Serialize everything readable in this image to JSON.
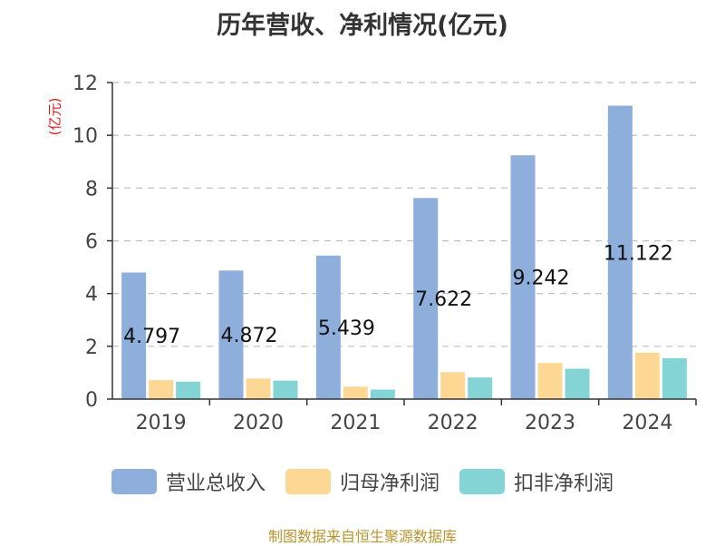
{
  "chart_data": {
    "type": "bar",
    "title": "历年营收、净利情况(亿元)",
    "ylabel": "(亿元)",
    "ylim": [
      0,
      12
    ],
    "yticks": [
      0,
      2,
      4,
      6,
      8,
      10,
      12
    ],
    "grid": true,
    "legend_position": "bottom",
    "categories": [
      "2019",
      "2020",
      "2021",
      "2022",
      "2023",
      "2024"
    ],
    "series": [
      {
        "name": "营业总收入",
        "color": "#8eaedb",
        "values": [
          4.797,
          4.872,
          5.439,
          7.622,
          9.242,
          11.122
        ],
        "labels": [
          "4.797",
          "4.872",
          "5.439",
          "7.622",
          "9.242",
          "11.122"
        ]
      },
      {
        "name": "归母净利润",
        "color": "#fdd894",
        "values": [
          0.72,
          0.78,
          0.47,
          1.02,
          1.37,
          1.76
        ]
      },
      {
        "name": "扣非净利润",
        "color": "#84d4d6",
        "values": [
          0.66,
          0.7,
          0.36,
          0.82,
          1.15,
          1.55
        ]
      }
    ]
  },
  "source": "制图数据来自恒生聚源数据库"
}
